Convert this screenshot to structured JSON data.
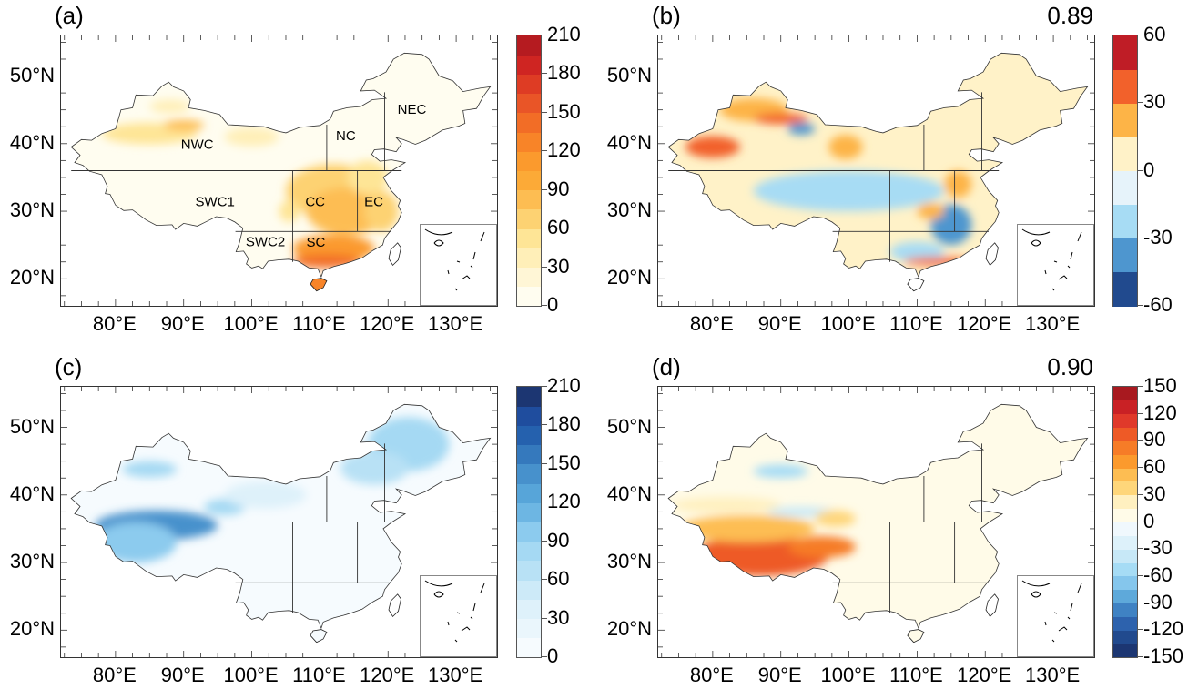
{
  "figure": {
    "lon_ticks": [
      "80°E",
      "90°E",
      "100°E",
      "110°E",
      "120°E",
      "130°E"
    ],
    "lat_ticks": [
      "50°N",
      "40°N",
      "30°N",
      "20°N"
    ],
    "lon_range": [
      72,
      136
    ],
    "lat_range": [
      16,
      56
    ]
  },
  "panels": [
    {
      "id": "a",
      "label": "(a)",
      "correlation": "",
      "palette": "YlOrRd",
      "colorbar": {
        "ticks": [
          "210",
          "180",
          "150",
          "120",
          "90",
          "60",
          "30",
          "0"
        ],
        "range": [
          0,
          210
        ],
        "step": 15,
        "colors": [
          "#fffdf0",
          "#fff6d6",
          "#ffefb8",
          "#fee596",
          "#fdd272",
          "#fdbd52",
          "#fcaa37",
          "#fb9a2d",
          "#f88428",
          "#f26d26",
          "#e95527",
          "#de3c24",
          "#cf2522",
          "#b51b20"
        ]
      },
      "regions": [
        "NWC",
        "NC",
        "NEC",
        "SWC1",
        "CC",
        "EC",
        "SWC2",
        "SC"
      ]
    },
    {
      "id": "b",
      "label": "(b)",
      "correlation": "0.89",
      "palette": "RdYlBu_r",
      "colorbar": {
        "ticks": [
          "60",
          "30",
          "0",
          "-30",
          "-60"
        ],
        "range": [
          -60,
          60
        ],
        "step": 15,
        "colors": [
          "#214a8e",
          "#4e96cf",
          "#a7dcf4",
          "#e6f3fa",
          "#fff2c8",
          "#fdb447",
          "#f2612b",
          "#bf1d26"
        ]
      },
      "regions": []
    },
    {
      "id": "c",
      "label": "(c)",
      "correlation": "",
      "palette": "Blues",
      "colorbar": {
        "ticks": [
          "210",
          "180",
          "150",
          "120",
          "90",
          "60",
          "30",
          "0"
        ],
        "range": [
          0,
          210
        ],
        "step": 15,
        "colors": [
          "#f6fbfe",
          "#eaf6fc",
          "#def1fa",
          "#cdeaf8",
          "#b8e1f5",
          "#a5d9f3",
          "#8ccbee",
          "#6db6e3",
          "#57a5d9",
          "#4791cc",
          "#3579bd",
          "#2561ae",
          "#1f4d9e",
          "#1c3672"
        ]
      },
      "regions": []
    },
    {
      "id": "d",
      "label": "(d)",
      "correlation": "0.90",
      "palette": "RdYlBu_r",
      "colorbar": {
        "ticks": [
          "150",
          "120",
          "90",
          "60",
          "30",
          "0",
          "-30",
          "-60",
          "-90",
          "-120",
          "-150"
        ],
        "range": [
          -150,
          150
        ],
        "step": 15,
        "colors": [
          "#1c3672",
          "#214a8e",
          "#2d62ad",
          "#3f82c3",
          "#5ea9da",
          "#85c6ec",
          "#a6dcf5",
          "#c7e8f7",
          "#ddf1fa",
          "#f0f8fd",
          "#fffbe8",
          "#fff0c0",
          "#fed67a",
          "#fdbd52",
          "#fb9a2d",
          "#f67c27",
          "#ee5a26",
          "#e0392a",
          "#c92125",
          "#a8191f"
        ]
      },
      "regions": []
    }
  ]
}
